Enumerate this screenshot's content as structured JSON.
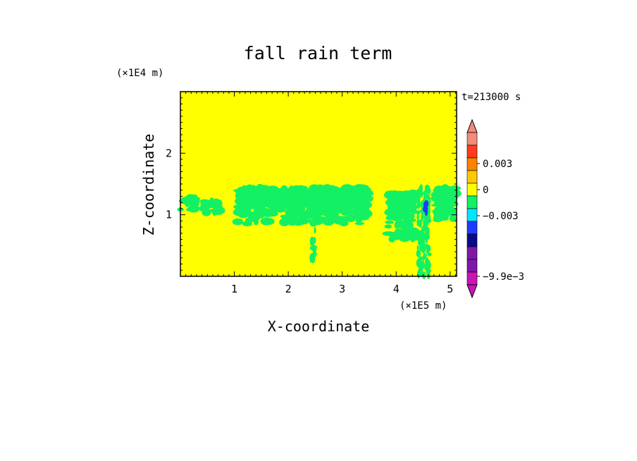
{
  "chart_data": {
    "type": "heatmap",
    "title": "fall rain term",
    "xlabel": "X-coordinate",
    "ylabel": "Z-coordinate",
    "x_unit": "(×1E5 m)",
    "y_unit": "(×1E4 m)",
    "time_label": "t=213000 s",
    "xlim": [
      0,
      5.12
    ],
    "ylim": [
      0,
      3.0
    ],
    "x_ticks": [
      "1",
      "2",
      "3",
      "4",
      "5"
    ],
    "x_tick_values": [
      1,
      2,
      3,
      4,
      5
    ],
    "y_ticks": [
      "1",
      "2"
    ],
    "y_tick_values": [
      1,
      2
    ],
    "background_value": 0,
    "background_color": "#ffff00",
    "colorbar": {
      "labels": [
        "0.003",
        "0",
        "−0.003",
        "−9.9e−3"
      ],
      "label_values": [
        0.003,
        0,
        -0.003,
        -0.0099
      ],
      "levels": [
        {
          "color": "#c815b4"
        },
        {
          "color": "#c815b4"
        },
        {
          "color": "#7d18a8"
        },
        {
          "color": "#7d18a8"
        },
        {
          "color": "#0a0a8c"
        },
        {
          "color": "#1e3cff"
        },
        {
          "color": "#00e6ff"
        },
        {
          "color": "#14f064"
        },
        {
          "color": "#ffff00"
        },
        {
          "color": "#ffc800"
        },
        {
          "color": "#ff8200"
        },
        {
          "color": "#ff3c1e"
        },
        {
          "color": "#f08c78"
        },
        {
          "color": "#f08c78"
        }
      ]
    },
    "features": [
      {
        "name": "rain band",
        "color": "#14f064",
        "x_range": [
          0.0,
          0.28
        ],
        "z_range": [
          1.05,
          1.3
        ]
      },
      {
        "name": "rain band",
        "color": "#14f064",
        "x_range": [
          0.42,
          0.75
        ],
        "z_range": [
          1.02,
          1.22
        ]
      },
      {
        "name": "rain band",
        "color": "#14f064",
        "x_range": [
          1.05,
          3.5
        ],
        "z_range": [
          0.85,
          1.45
        ]
      },
      {
        "name": "rain shaft",
        "color": "#14f064",
        "x_range": [
          2.42,
          2.5
        ],
        "z_range": [
          0.25,
          0.75
        ]
      },
      {
        "name": "rain band",
        "color": "#14f064",
        "x_range": [
          3.85,
          4.35
        ],
        "z_range": [
          0.6,
          1.35
        ]
      },
      {
        "name": "rain shaft",
        "color": "#14f064",
        "x_range": [
          4.4,
          4.62
        ],
        "z_range": [
          0.0,
          1.45
        ]
      },
      {
        "name": "rain band",
        "color": "#14f064",
        "x_range": [
          4.72,
          5.12
        ],
        "z_range": [
          0.9,
          1.45
        ]
      },
      {
        "name": "negative patch",
        "color": "#1e3cff",
        "x_range": [
          4.53,
          4.56
        ],
        "z_range": [
          1.05,
          1.18
        ]
      }
    ]
  }
}
